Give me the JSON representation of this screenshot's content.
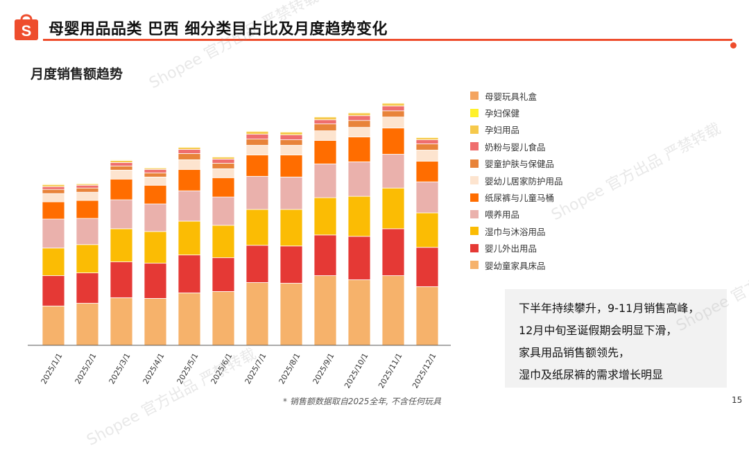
{
  "header": {
    "title": "母婴用品品类 巴西 细分类目占比及月度趋势变化",
    "logo_letter": "S",
    "brand_color": "#ee4d2d"
  },
  "subtitle": "月度销售额趋势",
  "chart_data": {
    "type": "bar",
    "stacked": true,
    "categories": [
      "2025/1/1",
      "2025/2/1",
      "2025/3/1",
      "2025/4/1",
      "2025/5/1",
      "2025/6/1",
      "2025/7/1",
      "2025/8/1",
      "2025/9/1",
      "2025/10/1",
      "2025/11/1",
      "2025/12/1"
    ],
    "series": [
      {
        "name": "婴幼童家具床品",
        "color": "#f6b26b",
        "values": [
          57,
          61,
          69,
          68,
          76,
          78,
          91,
          90,
          101,
          95,
          101,
          85
        ]
      },
      {
        "name": "婴儿外出用品",
        "color": "#e53935",
        "values": [
          44,
          44,
          52,
          51,
          55,
          49,
          54,
          54,
          59,
          63,
          68,
          57
        ]
      },
      {
        "name": "湿巾与沐浴用品",
        "color": "#fbbc04",
        "values": [
          40,
          41,
          48,
          46,
          49,
          47,
          52,
          53,
          54,
          58,
          59,
          50
        ]
      },
      {
        "name": "喂养用品",
        "color": "#eab1ac",
        "values": [
          42,
          38,
          42,
          40,
          44,
          41,
          48,
          47,
          49,
          50,
          49,
          45
        ]
      },
      {
        "name": "纸尿裤与儿童马桶",
        "color": "#ff6d00",
        "values": [
          25,
          26,
          30,
          27,
          31,
          28,
          31,
          32,
          34,
          36,
          38,
          30
        ]
      },
      {
        "name": "婴幼儿居家防护用品",
        "color": "#fde4cf",
        "values": [
          12,
          12,
          13,
          12,
          14,
          13,
          14,
          14,
          14,
          14,
          16,
          16
        ]
      },
      {
        "name": "婴童护肤与保健品",
        "color": "#e8833a",
        "values": [
          6,
          6,
          6,
          6,
          9,
          8,
          9,
          8,
          10,
          10,
          9,
          9
        ]
      },
      {
        "name": "奶粉与婴儿食品",
        "color": "#ef6e6e",
        "values": [
          4,
          4,
          5,
          5,
          6,
          6,
          7,
          7,
          6,
          7,
          7,
          6
        ]
      },
      {
        "name": "孕妇用品",
        "color": "#f6c94b",
        "values": [
          3,
          2,
          3,
          2,
          3,
          3,
          4,
          4,
          4,
          4,
          4,
          3
        ]
      },
      {
        "name": "孕妇保健",
        "color": "#fff12a",
        "values": [
          1,
          1,
          1,
          1,
          1,
          1,
          1,
          1,
          1,
          1,
          1,
          1
        ]
      },
      {
        "name": "母婴玩具礼盒",
        "color": "#f4a460",
        "values": [
          0.5,
          0.5,
          0.5,
          0.5,
          0.5,
          0.5,
          0.5,
          0.5,
          0.5,
          0.5,
          0.5,
          0.5
        ]
      }
    ],
    "ylim": [
      0,
      380
    ],
    "grid": false,
    "legend_position": "right",
    "legend_order": [
      "母婴玩具礼盒",
      "孕妇保健",
      "孕妇用品",
      "奶粉与婴儿食品",
      "婴童护肤与保健品",
      "婴幼儿居家防护用品",
      "纸尿裤与儿童马桶",
      "喂养用品",
      "湿巾与沐浴用品",
      "婴儿外出用品",
      "婴幼童家具床品"
    ]
  },
  "notes": [
    "下半年持续攀升，9-11月销售高峰，",
    "12月中旬圣诞假期会明显下滑，",
    "家具用品销售额领先，",
    "湿巾及纸尿裤的需求增长明显"
  ],
  "footnote": "* 销售额数据取自2025全年, 不含任何玩具",
  "page_number": "15",
  "watermarks": [
    "Shopee 官方出品 严禁转载"
  ]
}
